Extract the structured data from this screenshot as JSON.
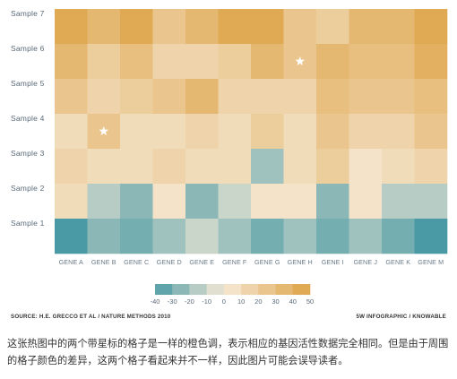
{
  "source_left": "SOURCE: H.E. GRECCO ET AL / NATURE METHODS 2010",
  "source_right": "5W INFOGRAPHIC / KNOWABLE",
  "caption": "这张热图中的两个带星标的格子是一样的橙色调，表示相应的基因活性数据完全相同。但是由于周围的格子颜色的差异，这两个格子看起来并不一样，因此图片可能会误导读者。",
  "chart_data": {
    "type": "heatmap",
    "rows": [
      "Sample 7",
      "Sample 6",
      "Sample 5",
      "Sample 4",
      "Sample 3",
      "Sample 2",
      "Sample 1"
    ],
    "columns": [
      "GENE A",
      "GENE B",
      "GENE C",
      "GENE D",
      "GENE E",
      "GENE F",
      "GENE G",
      "GENE H",
      "GENE I",
      "GENE J",
      "GENE K",
      "GENE M"
    ],
    "values": [
      [
        45,
        35,
        45,
        25,
        35,
        45,
        45,
        25,
        20,
        35,
        35,
        45
      ],
      [
        35,
        20,
        30,
        15,
        15,
        20,
        35,
        25,
        35,
        30,
        30,
        40
      ],
      [
        25,
        15,
        20,
        25,
        35,
        15,
        15,
        15,
        30,
        25,
        25,
        30
      ],
      [
        10,
        25,
        10,
        10,
        15,
        10,
        20,
        10,
        25,
        15,
        15,
        25
      ],
      [
        15,
        10,
        10,
        15,
        10,
        10,
        -20,
        10,
        20,
        5,
        10,
        15
      ],
      [
        10,
        -15,
        -25,
        5,
        -25,
        -10,
        5,
        5,
        -25,
        5,
        -15,
        -15
      ],
      [
        -40,
        -25,
        -30,
        -20,
        -10,
        -20,
        -30,
        -20,
        -30,
        -20,
        -30,
        -40
      ]
    ],
    "starred_cells": [
      [
        1,
        7
      ],
      [
        3,
        1
      ]
    ],
    "colorbar": {
      "ticks": [
        -40,
        -30,
        -20,
        -10,
        0,
        10,
        20,
        30,
        40,
        50
      ],
      "range": [
        -40,
        50
      ],
      "low_color": "#4a9aa5",
      "mid_color": "#f6ead6",
      "high_color": "#dea245"
    }
  }
}
